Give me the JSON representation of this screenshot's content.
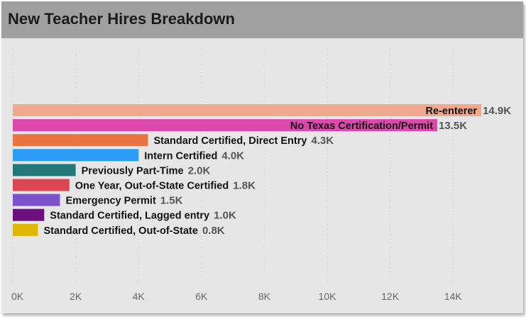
{
  "panel": {
    "title": "New Teacher Hires Breakdown"
  },
  "chart_data": {
    "type": "bar",
    "orientation": "horizontal",
    "title": "New Teacher Hires Breakdown",
    "categories": [
      "Re-enterer",
      "No Texas Certification/Permit",
      "Standard Certified, Direct Entry",
      "Intern Certified",
      "Previously Part-Time",
      "One Year, Out-of-State Certified",
      "Emergency Permit",
      "Standard Certified, Lagged entry",
      "Standard Certified, Out-of-State"
    ],
    "values": [
      14900,
      13500,
      4300,
      4000,
      2000,
      1800,
      1500,
      1000,
      800
    ],
    "data_labels": [
      "14.9K",
      "13.5K",
      "4.3K",
      "4.0K",
      "2.0K",
      "1.8K",
      "1.5K",
      "1.0K",
      "0.8K"
    ],
    "colors": [
      "#f0a98c",
      "#dd48ad",
      "#e9743f",
      "#2b9df5",
      "#23797a",
      "#dc4653",
      "#7c52c8",
      "#6c0f7f",
      "#ddb700"
    ],
    "xlim": [
      0,
      15000
    ],
    "xticks": [
      0,
      2000,
      4000,
      6000,
      8000,
      10000,
      12000,
      14000
    ],
    "xtick_labels": [
      "0K",
      "2K",
      "4K",
      "6K",
      "8K",
      "10K",
      "12K",
      "14K"
    ],
    "grid": true,
    "xlabel": "",
    "ylabel": ""
  }
}
